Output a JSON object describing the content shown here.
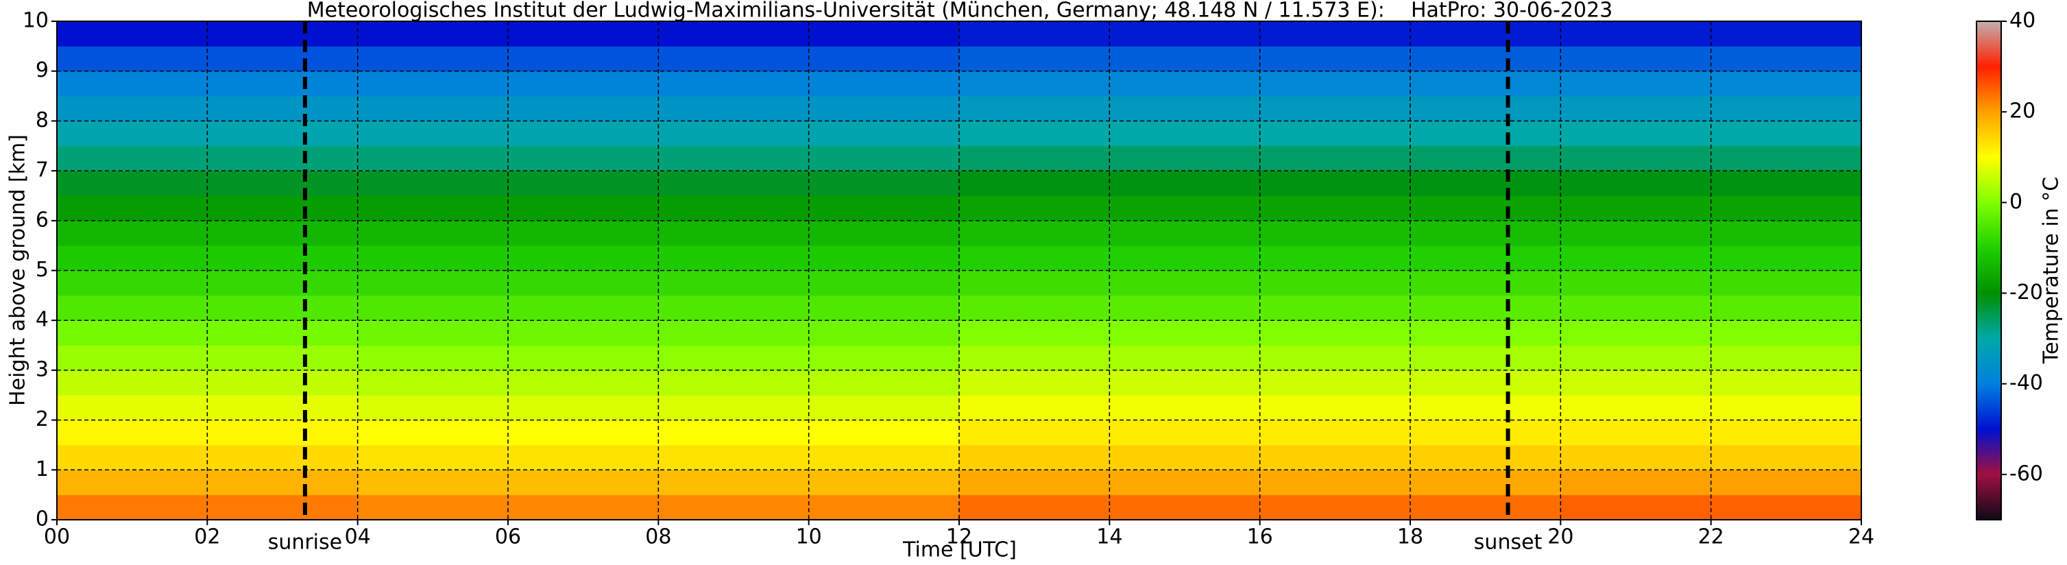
{
  "chart_data": {
    "type": "heatmap",
    "title": "Meteorologisches Institut der Ludwig-Maximilians-Universität (München, Germany; 48.148 N / 11.573 E):    HatPro: 30-06-2023",
    "x_label": "Time [UTC]",
    "y_label": "Height above ground [km]",
    "colorbar_label": "Temperature in $^\\circ$C",
    "x_bins": [
      0,
      4,
      8,
      12,
      16,
      20,
      24
    ],
    "y_bins": [
      0,
      0.5,
      1,
      1.5,
      2,
      2.5,
      3,
      3.5,
      4,
      4.5,
      5,
      5.5,
      6,
      6.5,
      7,
      7.5,
      8,
      8.5,
      9,
      9.5,
      10
    ],
    "values": [
      [
        23,
        22,
        22,
        24,
        24,
        25
      ],
      [
        18,
        17,
        17,
        19,
        19,
        20
      ],
      [
        14,
        13,
        13,
        15,
        15,
        15
      ],
      [
        11,
        10,
        10,
        12,
        12,
        12
      ],
      [
        8,
        7,
        7,
        9,
        9,
        9
      ],
      [
        5,
        4,
        4,
        6,
        6,
        6
      ],
      [
        2,
        1,
        1,
        3,
        3,
        3
      ],
      [
        -1,
        -2,
        -2,
        0,
        0,
        0
      ],
      [
        -5,
        -5,
        -5,
        -4,
        -4,
        -4
      ],
      [
        -8,
        -8,
        -8,
        -7,
        -7,
        -7
      ],
      [
        -11,
        -11,
        -11,
        -10,
        -10,
        -10
      ],
      [
        -14,
        -14,
        -14,
        -13,
        -13,
        -13
      ],
      [
        -18,
        -18,
        -18,
        -17,
        -17,
        -17
      ],
      [
        -22,
        -22,
        -22,
        -21,
        -21,
        -21
      ],
      [
        -27,
        -27,
        -27,
        -26,
        -26,
        -26
      ],
      [
        -31,
        -31,
        -31,
        -30,
        -30,
        -30
      ],
      [
        -35,
        -35,
        -35,
        -34,
        -34,
        -34
      ],
      [
        -39,
        -39,
        -39,
        -38,
        -38,
        -38
      ],
      [
        -44,
        -44,
        -44,
        -43,
        -43,
        -43
      ],
      [
        -50,
        -50,
        -50,
        -49,
        -49,
        -49
      ]
    ],
    "xlim": [
      0,
      24
    ],
    "xticks": [
      {
        "value": 0,
        "label": "00"
      },
      {
        "value": 2,
        "label": "02"
      },
      {
        "value": 4,
        "label": "04"
      },
      {
        "value": 6,
        "label": "06"
      },
      {
        "value": 8,
        "label": "08"
      },
      10,
      12,
      14,
      16,
      18,
      20,
      22,
      24
    ],
    "ylim": [
      0,
      10
    ],
    "yticks": [
      0,
      1,
      2,
      3,
      4,
      5,
      6,
      7,
      8,
      9,
      10
    ],
    "clim": [
      -70,
      40
    ],
    "cticks": [
      -60,
      -40,
      -20,
      0,
      20,
      40
    ],
    "colormap": [
      "#100818",
      "#a01040",
      "#0010d0",
      "#0080e0",
      "#00a8a8",
      "#009000",
      "#20d000",
      "#80ff00",
      "#ffff00",
      "#ffa000",
      "#ff2000",
      "#c0b0b0"
    ],
    "grid": true,
    "annotations": [
      {
        "text": "sunrise",
        "x": 3.3
      },
      {
        "text": "sunset",
        "x": 19.3
      }
    ]
  }
}
